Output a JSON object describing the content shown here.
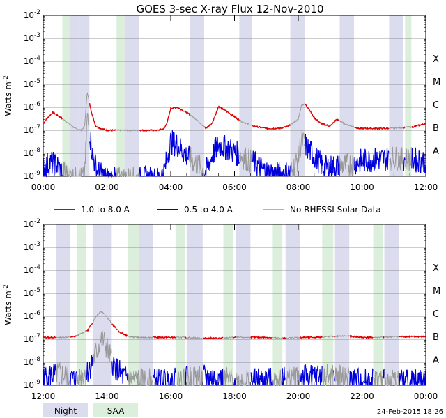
{
  "title": "GOES 3-sec X-ray Flux   12-Nov-2010",
  "footer_date": "24-Feb-2015 18:26",
  "legend": {
    "items": [
      {
        "label": "1.0 to 8.0 A",
        "color": "#dd0000"
      },
      {
        "label": "0.5 to 4.0 A",
        "color": "#0000dd"
      },
      {
        "label": "No RHESSI Solar Data",
        "color": "#999999"
      }
    ],
    "night_label": "Night",
    "saa_label": "SAA",
    "night_color": "#dcdcef",
    "saa_color": "#dcefdc"
  },
  "chart_data": [
    {
      "type": "line",
      "panel": "top",
      "ylabel": "Watts m^-2",
      "yscale": "log",
      "ylim": [
        1e-09,
        0.01
      ],
      "xlim_hours": [
        0,
        12
      ],
      "y_tick_labels": [
        "10^-9",
        "10^-8",
        "10^-7",
        "10^-6",
        "10^-5",
        "10^-4",
        "10^-3",
        "10^-2"
      ],
      "x_tick_labels": [
        "00:00",
        "02:00",
        "04:00",
        "06:00",
        "08:00",
        "10:00",
        "12:00"
      ],
      "class_labels": [
        "A",
        "B",
        "C",
        "M",
        "X"
      ],
      "night_intervals_hours": [
        [
          0.85,
          1.1
        ],
        [
          1.1,
          1.45
        ],
        [
          2.55,
          3.0
        ],
        [
          4.6,
          5.05
        ],
        [
          6.15,
          6.55
        ],
        [
          7.75,
          8.2
        ],
        [
          9.3,
          9.75
        ],
        [
          10.85,
          11.3
        ]
      ],
      "night_intervals_hours_note": "shaded night bands",
      "saa_intervals_hours": [
        [
          0.6,
          0.85
        ],
        [
          2.3,
          2.55
        ],
        [
          11.35,
          11.55
        ]
      ],
      "series": [
        {
          "name": "1.0 to 8.0 A",
          "color": "#dd0000",
          "x": [
            0,
            0.1,
            0.3,
            0.5,
            0.8,
            1.0,
            1.2,
            1.3,
            1.38,
            1.45,
            1.55,
            1.65,
            1.8,
            2.0,
            2.3,
            2.5,
            2.8,
            3.2,
            3.6,
            3.8,
            3.9,
            4.0,
            4.2,
            4.5,
            4.8,
            5.1,
            5.3,
            5.5,
            5.8,
            6.2,
            6.6,
            7.0,
            7.4,
            7.7,
            8.0,
            8.1,
            8.2,
            8.3,
            8.4,
            8.5,
            8.7,
            9.0,
            9.2,
            9.5,
            9.9,
            10.3,
            10.8,
            11.2,
            11.6,
            12.0
          ],
          "y": [
            2e-07,
            3e-07,
            6e-07,
            4e-07,
            2e-07,
            1.2e-07,
            1e-07,
            1.5e-07,
            4.8e-06,
            1.5e-06,
            4e-07,
            1.5e-07,
            1.2e-07,
            1e-07,
            1e-07,
            1e-07,
            1e-07,
            1e-07,
            1e-07,
            1.2e-07,
            2.5e-07,
            9e-07,
            1e-06,
            6e-07,
            3e-07,
            1.2e-07,
            2e-07,
            1.1e-06,
            6e-07,
            2.5e-07,
            1.5e-07,
            1.2e-07,
            1.2e-07,
            1.5e-07,
            3e-07,
            1.2e-06,
            1.4e-06,
            1e-06,
            6e-07,
            3.5e-07,
            2e-07,
            1.5e-07,
            3e-07,
            1.8e-07,
            1.2e-07,
            1.2e-07,
            1.2e-07,
            1.3e-07,
            1.4e-07,
            2e-07
          ]
        },
        {
          "name": "0.5 to 4.0 A",
          "color": "#0000dd",
          "x": [
            0,
            0.2,
            0.4,
            0.6,
            0.8,
            1.0,
            1.3,
            1.38,
            1.45,
            1.55,
            1.7,
            2.0,
            3.6,
            3.8,
            3.9,
            4.0,
            4.2,
            4.5,
            5.1,
            5.3,
            5.5,
            5.8,
            6.2,
            6.6,
            7.0,
            7.4,
            7.8,
            8.0,
            8.1,
            8.3,
            8.5,
            8.8,
            9.5,
            10.0,
            10.5,
            11.0,
            11.5,
            12.0
          ],
          "y": [
            3e-09,
            5e-09,
            4e-09,
            2e-09,
            1.5e-09,
            1e-09,
            1e-09,
            5e-07,
            1.2e-07,
            1e-08,
            2e-09,
            1e-09,
            1e-09,
            2e-09,
            1e-08,
            4e-08,
            3e-08,
            1e-08,
            2e-09,
            1e-08,
            3e-08,
            2e-08,
            1e-08,
            5e-09,
            2e-09,
            1.5e-09,
            2e-09,
            8e-09,
            5e-08,
            2e-08,
            1e-08,
            3e-09,
            4e-09,
            6e-09,
            7e-09,
            8e-09,
            7e-09,
            6e-09
          ]
        }
      ]
    },
    {
      "type": "line",
      "panel": "bottom",
      "ylabel": "Watts m^-2",
      "yscale": "log",
      "ylim": [
        1e-09,
        0.01
      ],
      "xlim_hours": [
        12,
        24
      ],
      "y_tick_labels": [
        "10^-9",
        "10^-8",
        "10^-7",
        "10^-6",
        "10^-5",
        "10^-4",
        "10^-3",
        "10^-2"
      ],
      "x_tick_labels": [
        "12:00",
        "14:00",
        "16:00",
        "18:00",
        "20:00",
        "22:00",
        "00:00"
      ],
      "class_labels": [
        "A",
        "B",
        "C",
        "M",
        "X"
      ],
      "night_intervals_hours": [
        [
          12.4,
          12.85
        ],
        [
          13.55,
          14.15
        ],
        [
          15.0,
          15.45
        ],
        [
          16.5,
          17.0
        ],
        [
          18.05,
          18.5
        ],
        [
          19.6,
          20.05
        ],
        [
          21.15,
          21.6
        ],
        [
          22.7,
          23.15
        ]
      ],
      "saa_intervals_hours": [
        [
          13.05,
          13.35
        ],
        [
          14.65,
          15.0
        ],
        [
          16.15,
          16.45
        ],
        [
          17.65,
          17.95
        ],
        [
          19.2,
          19.5
        ],
        [
          20.75,
          21.1
        ],
        [
          22.35,
          22.65
        ]
      ],
      "series": [
        {
          "name": "1.0 to 8.0 A",
          "color": "#dd0000",
          "x": [
            12,
            12.5,
            13,
            13.4,
            13.7,
            13.8,
            13.9,
            14.0,
            14.2,
            14.4,
            14.7,
            15.0,
            15.5,
            16.0,
            16.5,
            17.0,
            17.5,
            18.0,
            18.5,
            19.0,
            19.5,
            20.0,
            20.5,
            21.0,
            21.5,
            22.0,
            22.5,
            23.0,
            23.5,
            24.0
          ],
          "y": [
            1.2e-07,
            1.2e-07,
            1.3e-07,
            2.5e-07,
            1.2e-06,
            1.6e-06,
            1.4e-06,
            9e-07,
            4e-07,
            2e-07,
            1.3e-07,
            1.2e-07,
            1.2e-07,
            1.2e-07,
            1.2e-07,
            1.1e-07,
            1.1e-07,
            1.2e-07,
            1.2e-07,
            1.2e-07,
            1.1e-07,
            1.2e-07,
            1.2e-07,
            1.3e-07,
            1.4e-07,
            1.2e-07,
            1.2e-07,
            1.3e-07,
            1.3e-07,
            1.3e-07
          ]
        },
        {
          "name": "0.5 to 4.0 A",
          "color": "#0000dd",
          "x": [
            12,
            12.5,
            13,
            13.4,
            13.7,
            13.8,
            13.9,
            14.0,
            14.2,
            14.5,
            15.0,
            16.0,
            17.0,
            18.0,
            19.0,
            20.0,
            21.0,
            22.0,
            23.0,
            24.0
          ],
          "y": [
            3e-09,
            4e-09,
            2e-09,
            5e-09,
            4e-08,
            1.2e-07,
            1e-07,
            5e-08,
            1e-08,
            3e-09,
            2e-09,
            2e-09,
            3e-09,
            2e-09,
            2e-09,
            3e-09,
            3e-09,
            2e-09,
            2e-09,
            2e-09
          ]
        }
      ]
    }
  ]
}
